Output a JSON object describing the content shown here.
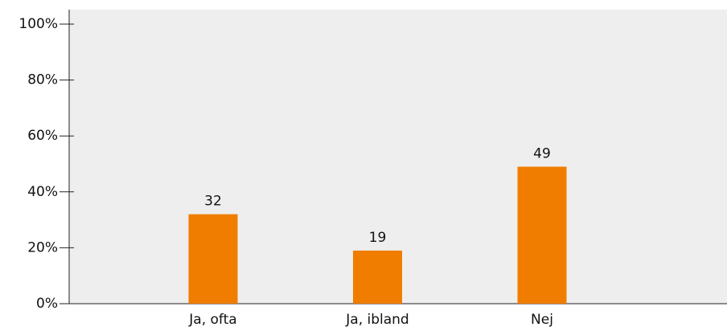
{
  "chart_data": {
    "type": "bar",
    "categories": [
      "Ja, ofta",
      "Ja, ibland",
      "Nej"
    ],
    "values": [
      32,
      19,
      49
    ],
    "color": "#f07d00",
    "ylim": [
      0,
      100
    ],
    "yticks": [
      {
        "value": 0,
        "label": "0%"
      },
      {
        "value": 20,
        "label": "20%"
      },
      {
        "value": 40,
        "label": "40%"
      },
      {
        "value": 60,
        "label": "60%"
      },
      {
        "value": 80,
        "label": "80%"
      },
      {
        "value": 100,
        "label": "100%"
      }
    ],
    "data_labels": true
  }
}
